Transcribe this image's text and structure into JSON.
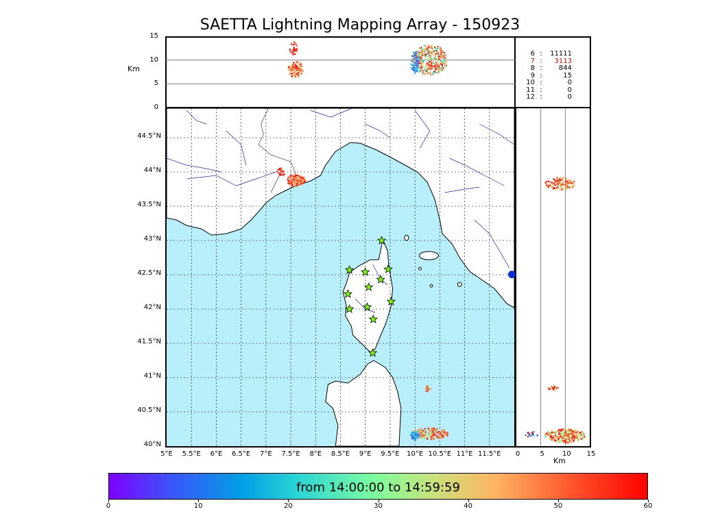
{
  "title": "SAETTA Lightning Mapping Array - 150923",
  "top_panel": {
    "ylabel": "Km",
    "yticks": [
      "15",
      "10",
      "5",
      "0"
    ]
  },
  "right_panel": {
    "xlabel": "Km",
    "xticks": [
      "0",
      "5",
      "10",
      "15"
    ]
  },
  "map": {
    "lat_ticks": [
      "44.5°N",
      "44°N",
      "43.5°N",
      "43°N",
      "42.5°N",
      "42°N",
      "41.5°N",
      "41°N",
      "40.5°N",
      "40°N"
    ],
    "lon_ticks": [
      "5°E",
      "5.5°E",
      "6°E",
      "6.5°E",
      "7°E",
      "7.5°E",
      "8°E",
      "8.5°E",
      "9°E",
      "9.5°E",
      "10°E",
      "10.5°E",
      "11°E",
      "11.5°E"
    ],
    "sea_color": "#b9effb",
    "stations_icon": "star-icon",
    "stations": [
      {
        "lon": 9.33,
        "lat": 43.0
      },
      {
        "lon": 8.68,
        "lat": 42.57
      },
      {
        "lon": 9.0,
        "lat": 42.54
      },
      {
        "lon": 9.46,
        "lat": 42.58
      },
      {
        "lon": 9.07,
        "lat": 42.32
      },
      {
        "lon": 9.31,
        "lat": 42.43
      },
      {
        "lon": 8.65,
        "lat": 42.22
      },
      {
        "lon": 9.52,
        "lat": 42.11
      },
      {
        "lon": 8.68,
        "lat": 42.0
      },
      {
        "lon": 9.04,
        "lat": 42.03
      },
      {
        "lon": 9.16,
        "lat": 41.85
      },
      {
        "lon": 9.15,
        "lat": 41.36
      }
    ]
  },
  "stats": [
    {
      "level": "6",
      "sep": ":",
      "count": "11111",
      "color": "#000000"
    },
    {
      "level": "7",
      "sep": ":",
      "count": "3113",
      "color": "#ff0000"
    },
    {
      "level": "8",
      "sep": ":",
      "count": "844",
      "color": "#000000"
    },
    {
      "level": "9",
      "sep": ":",
      "count": "15",
      "color": "#000000"
    },
    {
      "level": "10",
      "sep": ":",
      "count": "0",
      "color": "#000000"
    },
    {
      "level": "11",
      "sep": ":",
      "count": "0",
      "color": "#000000"
    },
    {
      "level": "12",
      "sep": ":",
      "count": "0",
      "color": "#000000"
    }
  ],
  "colorbar": {
    "label": "from 14:00:00 to 14:59:59",
    "ticks": [
      "0",
      "10",
      "20",
      "30",
      "40",
      "50",
      "60"
    ]
  }
}
